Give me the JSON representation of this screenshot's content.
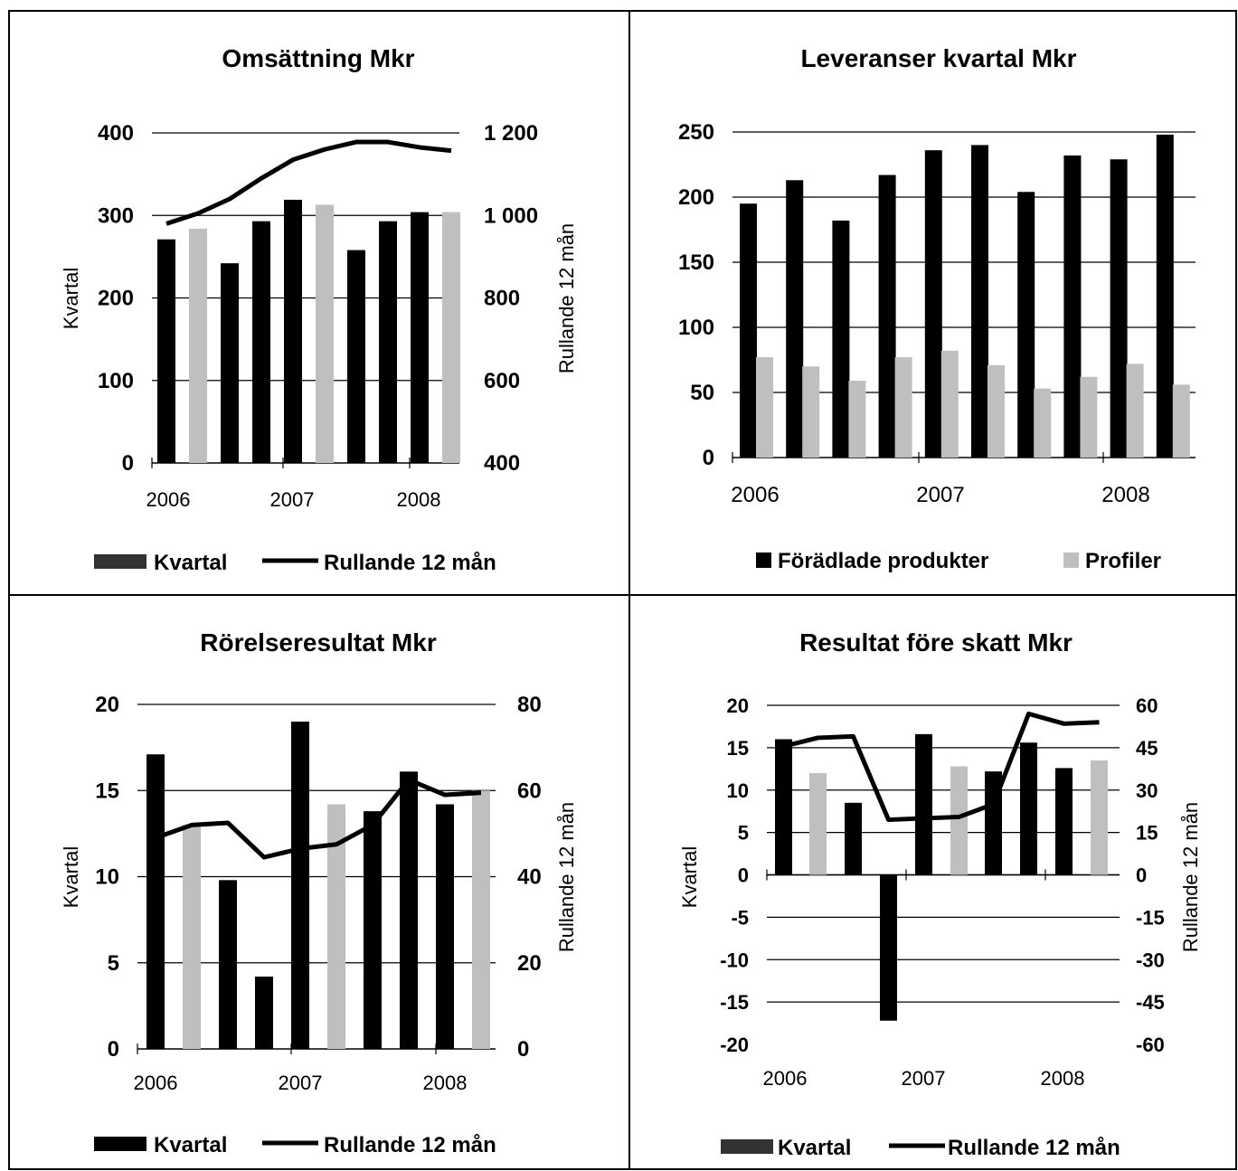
{
  "colors": {
    "black": "#000000",
    "grey": "#bfbfbf",
    "legend_dark": "#333333",
    "grid": "#000000"
  },
  "chart_data": [
    {
      "type": "bar",
      "title": "Omsättning Mkr",
      "ylabel": "Kvartal",
      "y2label": "Rullande 12 mån",
      "ylim": [
        0,
        400
      ],
      "y2lim": [
        400,
        1200
      ],
      "yticks": [
        "0",
        "100",
        "200",
        "300",
        "400"
      ],
      "y2ticks": [
        "400",
        "600",
        "800",
        "1 000",
        "1 200"
      ],
      "xticks": [
        "2006",
        "2007",
        "2008"
      ],
      "bar_colors": [
        "black",
        "grey",
        "black",
        "black",
        "black",
        "grey",
        "black",
        "black",
        "black",
        "grey"
      ],
      "series": [
        {
          "name": "Kvartal",
          "type": "bar",
          "values": [
            271,
            284,
            242,
            293,
            319,
            313,
            258,
            293,
            304,
            304
          ]
        },
        {
          "name": "Rullande 12 mån",
          "type": "line",
          "axis": "right",
          "values": [
            980,
            1005,
            1040,
            1090,
            1135,
            1160,
            1178,
            1178,
            1165,
            1157
          ]
        }
      ],
      "legend": [
        {
          "label": "Kvartal",
          "marker": "bar-dark"
        },
        {
          "label": "Rullande 12 mån",
          "marker": "line"
        }
      ],
      "legend_position": "bottom"
    },
    {
      "type": "bar",
      "title": "Leveranser kvartal Mkr",
      "ylim": [
        0,
        250
      ],
      "yticks": [
        "0",
        "50",
        "100",
        "150",
        "200",
        "250"
      ],
      "xticks": [
        "2006",
        "2007",
        "2008"
      ],
      "series": [
        {
          "name": "Förädlade produkter",
          "color": "black",
          "values": [
            195,
            213,
            182,
            217,
            236,
            240,
            204,
            232,
            229,
            248
          ]
        },
        {
          "name": "Profiler",
          "color": "grey",
          "values": [
            77,
            70,
            59,
            77,
            82,
            71,
            53,
            62,
            72,
            56
          ]
        }
      ],
      "legend": [
        {
          "label": "Förädlade produkter",
          "marker": "square-black"
        },
        {
          "label": "Profiler",
          "marker": "square-grey"
        }
      ],
      "legend_position": "bottom"
    },
    {
      "type": "bar",
      "title": "Rörelseresultat Mkr",
      "ylabel": "Kvartal",
      "y2label": "Rullande 12 mån",
      "ylim": [
        0,
        20
      ],
      "y2lim": [
        0,
        80
      ],
      "yticks": [
        "0",
        "5",
        "10",
        "15",
        "20"
      ],
      "y2ticks": [
        "0",
        "20",
        "40",
        "60",
        "80"
      ],
      "xticks": [
        "2006",
        "2007",
        "2008"
      ],
      "bar_colors": [
        "black",
        "grey",
        "black",
        "black",
        "black",
        "grey",
        "black",
        "black",
        "black",
        "grey"
      ],
      "series": [
        {
          "name": "Kvartal",
          "type": "bar",
          "values": [
            17.1,
            13.0,
            9.8,
            4.2,
            19.0,
            14.2,
            13.8,
            16.1,
            14.2,
            15.0
          ]
        },
        {
          "name": "Rullande 12 mån",
          "type": "line",
          "axis": "right",
          "values": [
            49,
            52,
            52.5,
            44.5,
            46.5,
            47.5,
            52,
            62.5,
            59,
            59.5
          ]
        }
      ],
      "legend": [
        {
          "label": "Kvartal",
          "marker": "bar-black"
        },
        {
          "label": "Rullande 12 mån",
          "marker": "line"
        }
      ],
      "legend_position": "bottom"
    },
    {
      "type": "bar",
      "title": "Resultat före skatt Mkr",
      "ylabel": "Kvartal",
      "y2label": "Rullande 12 mån",
      "ylim": [
        -20,
        20
      ],
      "y2lim": [
        -60,
        60
      ],
      "yticks": [
        "-20",
        "-15",
        "-10",
        "-5",
        "0",
        "5",
        "10",
        "15",
        "20"
      ],
      "y2ticks": [
        "-60",
        "-45",
        "-30",
        "-15",
        "0",
        "15",
        "30",
        "45",
        "60"
      ],
      "xticks": [
        "2006",
        "2007",
        "2008"
      ],
      "bar_colors": [
        "black",
        "grey",
        "black",
        "black",
        "black",
        "grey",
        "black",
        "black",
        "black",
        "grey"
      ],
      "series": [
        {
          "name": "Kvartal",
          "type": "bar",
          "values": [
            16.0,
            12.0,
            8.5,
            -17.2,
            16.6,
            12.8,
            12.2,
            15.6,
            12.6,
            13.5
          ]
        },
        {
          "name": "Rullande 12 mån",
          "type": "line",
          "axis": "right",
          "values": [
            45.5,
            48.5,
            49,
            19.5,
            20,
            20.5,
            25,
            57,
            53.5,
            54
          ]
        }
      ],
      "legend": [
        {
          "label": "Kvartal",
          "marker": "bar-dark"
        },
        {
          "label": "Rullande 12 mån",
          "marker": "line"
        }
      ],
      "legend_position": "bottom"
    }
  ]
}
